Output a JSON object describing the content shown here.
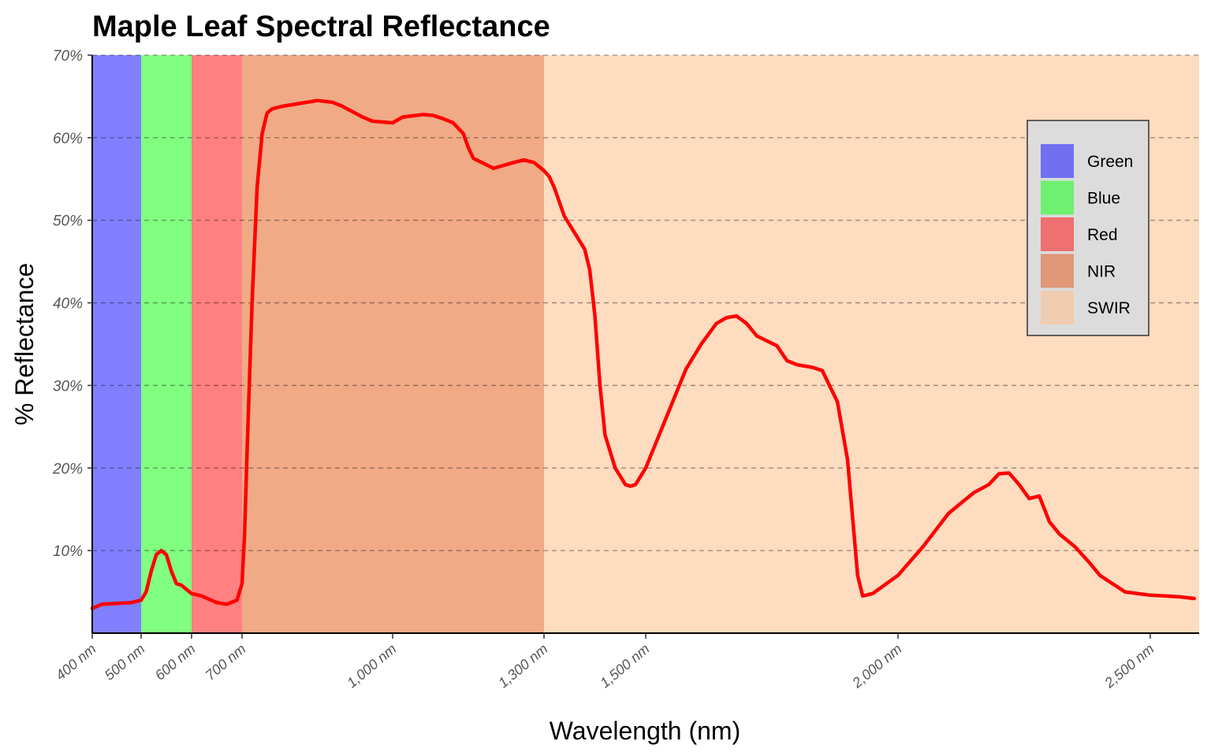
{
  "chart_data": {
    "type": "line",
    "title": "Maple Leaf Spectral Reflectance",
    "xlabel": "Wavelength (nm)",
    "ylabel": "% Reflectance",
    "xlim": [
      400,
      2600
    ],
    "ylim": [
      0,
      70
    ],
    "x_ticks": [
      400,
      500,
      600,
      700,
      1000,
      1300,
      1500,
      2000,
      2500
    ],
    "x_tick_labels": [
      "400 nm",
      "500 nm",
      "600 nm",
      "700 nm",
      "1,000 nm",
      "1,300 nm",
      "1,500 nm",
      "2,000 nm",
      "2,500 nm"
    ],
    "y_ticks": [
      10,
      20,
      30,
      40,
      50,
      60,
      70
    ],
    "y_tick_labels": [
      "10%",
      "20%",
      "30%",
      "40%",
      "50%",
      "60%",
      "70%"
    ],
    "grid": "horizontal dashed",
    "legend_placement": "top-right",
    "bands": [
      {
        "name": "Green",
        "x0": 400,
        "x1": 500,
        "fill": "#8080ff",
        "legend_color": "#7070f0"
      },
      {
        "name": "Blue",
        "x0": 500,
        "x1": 600,
        "fill": "#80ff80",
        "legend_color": "#70f070"
      },
      {
        "name": "Red",
        "x0": 600,
        "x1": 700,
        "fill": "#ff8080",
        "legend_color": "#ee7070"
      },
      {
        "name": "NIR",
        "x0": 700,
        "x1": 1300,
        "fill": "#f0aa86",
        "legend_color": "#e09878"
      },
      {
        "name": "SWIR",
        "x0": 1300,
        "x1": 2600,
        "fill": "#fedcc0",
        "legend_color": "#f0ccb0"
      }
    ],
    "series": [
      {
        "color": "#ff0000",
        "x": [
          400,
          420,
          450,
          480,
          500,
          510,
          520,
          530,
          540,
          550,
          560,
          570,
          580,
          600,
          620,
          650,
          670,
          690,
          700,
          705,
          710,
          720,
          730,
          740,
          750,
          760,
          780,
          800,
          850,
          880,
          900,
          940,
          960,
          1000,
          1020,
          1060,
          1080,
          1100,
          1120,
          1140,
          1150,
          1160,
          1200,
          1240,
          1260,
          1280,
          1300,
          1310,
          1320,
          1340,
          1360,
          1380,
          1390,
          1400,
          1410,
          1420,
          1440,
          1450,
          1460,
          1470,
          1480,
          1500,
          1520,
          1550,
          1580,
          1610,
          1640,
          1660,
          1680,
          1700,
          1720,
          1760,
          1780,
          1800,
          1830,
          1850,
          1880,
          1900,
          1910,
          1920,
          1930,
          1950,
          2000,
          2050,
          2100,
          2150,
          2180,
          2200,
          2220,
          2240,
          2260,
          2280,
          2300,
          2320,
          2350,
          2380,
          2400,
          2450,
          2500,
          2530,
          2560,
          2590
        ],
        "y": [
          3.0,
          3.5,
          3.6,
          3.7,
          4.0,
          5.0,
          7.5,
          9.5,
          10.0,
          9.5,
          7.5,
          6.0,
          5.8,
          4.8,
          4.5,
          3.7,
          3.5,
          4.0,
          6.0,
          12.0,
          22.0,
          40.0,
          54.0,
          60.5,
          63.0,
          63.5,
          63.8,
          64.0,
          64.5,
          64.3,
          63.8,
          62.5,
          62.0,
          61.8,
          62.5,
          62.8,
          62.7,
          62.3,
          61.8,
          60.5,
          58.8,
          57.5,
          56.3,
          57.0,
          57.3,
          57.0,
          56.0,
          55.3,
          54.0,
          50.5,
          48.5,
          46.5,
          44.0,
          38.5,
          30.0,
          24.0,
          20.0,
          19.0,
          18.0,
          17.8,
          18.0,
          20.0,
          23.0,
          27.5,
          32.0,
          35.0,
          37.5,
          38.2,
          38.4,
          37.5,
          36.0,
          34.8,
          33.0,
          32.5,
          32.2,
          31.8,
          28.0,
          21.0,
          14.0,
          7.0,
          4.5,
          4.8,
          7.0,
          10.5,
          14.5,
          17.0,
          18.0,
          19.3,
          19.4,
          18.0,
          16.3,
          16.6,
          13.5,
          12.0,
          10.5,
          8.5,
          7.0,
          5.0,
          4.6,
          4.5,
          4.4,
          4.2
        ]
      }
    ]
  }
}
